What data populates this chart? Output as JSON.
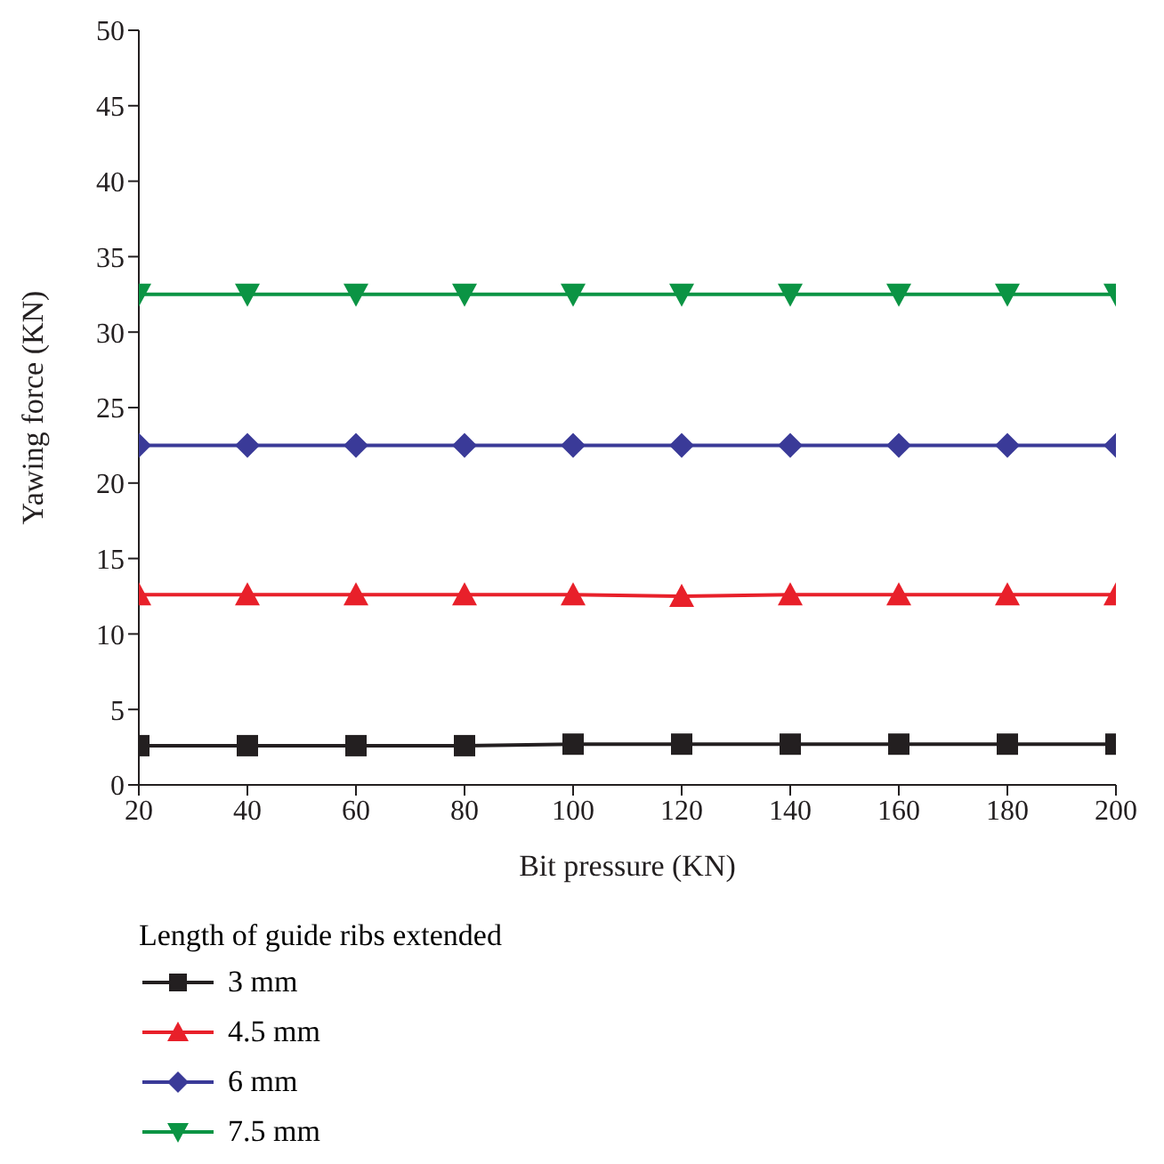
{
  "chart_data": {
    "type": "line",
    "xlabel": "Bit pressure (KN)",
    "ylabel": "Yawing force (KN)",
    "legend_title": "Length of guide ribs extended",
    "x": [
      20,
      40,
      60,
      80,
      100,
      120,
      140,
      160,
      180,
      200
    ],
    "xlim": [
      20,
      200
    ],
    "xticks": [
      20,
      40,
      60,
      80,
      100,
      120,
      140,
      160,
      180,
      200
    ],
    "ylim": [
      0,
      50
    ],
    "yticks": [
      0,
      5,
      10,
      15,
      20,
      25,
      30,
      35,
      40,
      45,
      50
    ],
    "grid": false,
    "legend": "bottom",
    "line_style": "solid",
    "series": [
      {
        "name": "3 mm",
        "color": "#231f20",
        "marker": "square",
        "values": [
          2.6,
          2.6,
          2.6,
          2.6,
          2.7,
          2.7,
          2.7,
          2.7,
          2.7,
          2.7
        ]
      },
      {
        "name": "4.5 mm",
        "color": "#e8202a",
        "marker": "triangle",
        "values": [
          12.6,
          12.6,
          12.6,
          12.6,
          12.6,
          12.5,
          12.6,
          12.6,
          12.6,
          12.6
        ]
      },
      {
        "name": "6 mm",
        "color": "#3a3a98",
        "marker": "diamond",
        "values": [
          22.5,
          22.5,
          22.5,
          22.5,
          22.5,
          22.5,
          22.5,
          22.5,
          22.5,
          22.5
        ]
      },
      {
        "name": "7.5 mm",
        "color": "#0b9444",
        "marker": "triangle-down",
        "values": [
          32.5,
          32.5,
          32.5,
          32.5,
          32.5,
          32.5,
          32.5,
          32.5,
          32.5,
          32.5
        ]
      }
    ]
  }
}
